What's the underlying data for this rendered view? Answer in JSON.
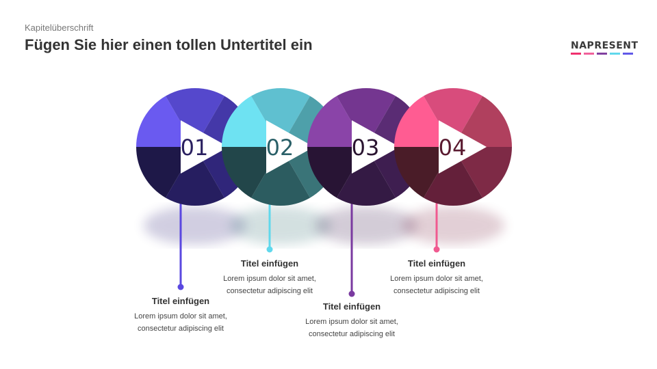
{
  "header": {
    "chapter": "Kapitelüberschrift",
    "subtitle": "Fügen Sie hier einen tollen Untertitel ein"
  },
  "logo": {
    "text": "NAPRESENT",
    "bar_colors": [
      "#f0306e",
      "#f0609a",
      "#8040a0",
      "#60d8ec",
      "#6058e8"
    ]
  },
  "steps": [
    {
      "number": "01",
      "title": "Titel einfügen",
      "text1": "Lorem ipsum dolor sit amet,",
      "text2": "consectetur adipiscing elit",
      "accent": "#5a48e0",
      "number_color": "#2a2060",
      "segments": [
        "#6a5af0",
        "#5548cc",
        "#4438a8",
        "#30267a",
        "#261e60",
        "#1e1848"
      ]
    },
    {
      "number": "02",
      "title": "Titel einfügen",
      "text1": "Lorem ipsum dolor sit amet,",
      "text2": "consectetur adipiscing elit",
      "accent": "#60d8ec",
      "number_color": "#2a6068",
      "segments": [
        "#6ee2f2",
        "#5fc0d0",
        "#4ea0aa",
        "#3a7478",
        "#2c5c60",
        "#22464a"
      ]
    },
    {
      "number": "03",
      "title": "Titel einfügen",
      "text1": "Lorem ipsum dolor sit amet,",
      "text2": "consectetur adipiscing elit",
      "accent": "#7a3aa0",
      "number_color": "#2a1430",
      "segments": [
        "#8a44a8",
        "#743690",
        "#5a2c74",
        "#3e1e50",
        "#341a44",
        "#281434"
      ]
    },
    {
      "number": "04",
      "title": "Titel einfügen",
      "text1": "Lorem ipsum dolor sit amet,",
      "text2": "consectetur adipiscing elit",
      "accent": "#f05a90",
      "number_color": "#5a1a30",
      "segments": [
        "#ff5c92",
        "#d84c7c",
        "#b0405e",
        "#7e2a46",
        "#64203a",
        "#4a1c28"
      ]
    }
  ]
}
